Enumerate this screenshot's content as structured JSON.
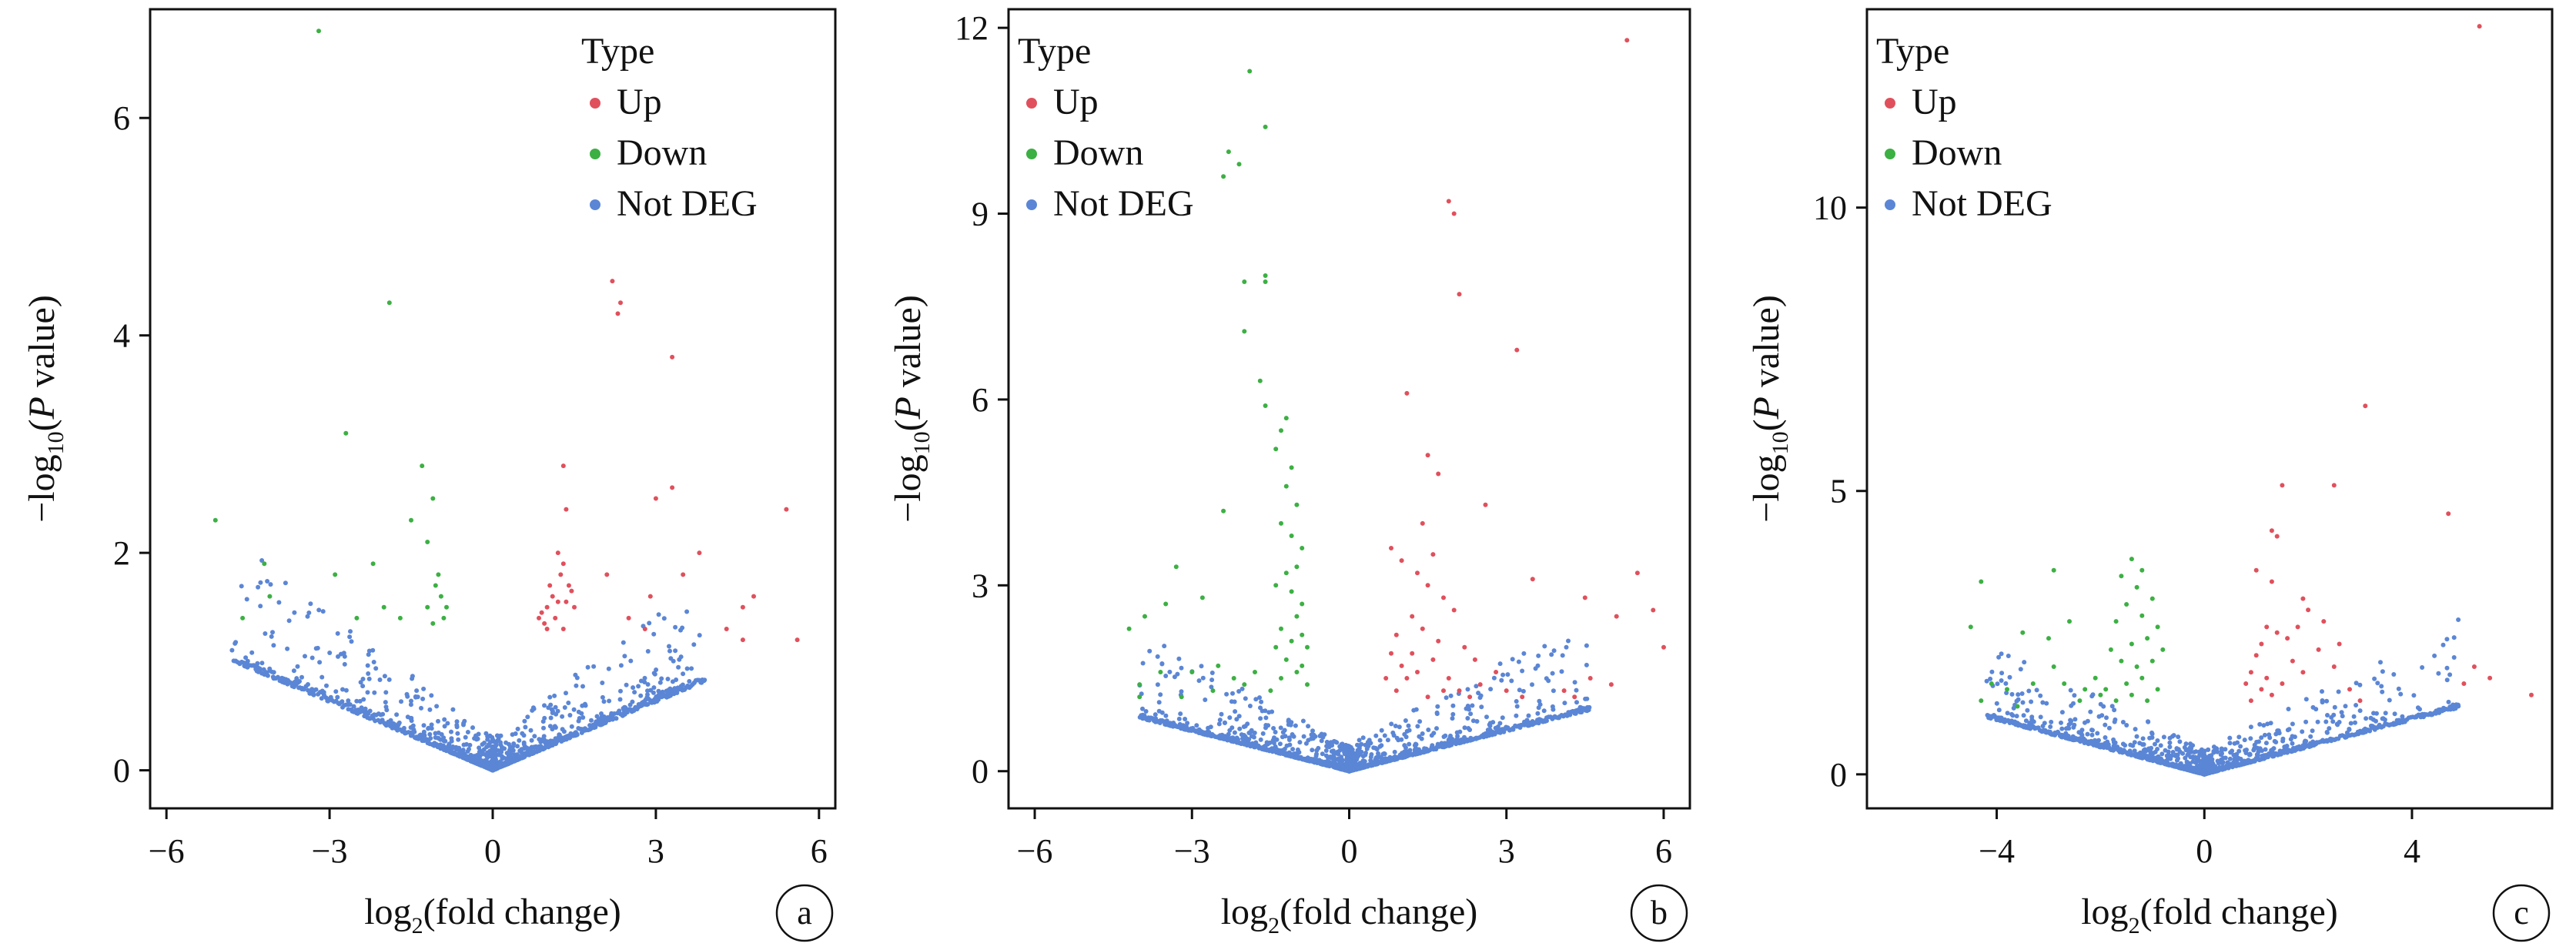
{
  "legend": {
    "title": "Type",
    "items": [
      {
        "label": "Up",
        "color": "#e0505c"
      },
      {
        "label": "Down",
        "color": "#3cb043"
      },
      {
        "label": "Not DEG",
        "color": "#5b86d6"
      }
    ]
  },
  "axis_text": {
    "x_main": "log",
    "x_sub": "2",
    "x_rest": "(fold change)",
    "y_pre": "−log",
    "y_sub": "10",
    "y_open": "(",
    "y_p": "P",
    "y_rest": " value)"
  },
  "chart_data": [
    {
      "type": "scatter",
      "panel_label": "a",
      "xlim": [
        -6.3,
        6.3
      ],
      "ylim": [
        -0.35,
        7.0
      ],
      "xticks": [
        -6,
        -3,
        0,
        3,
        6
      ],
      "yticks": [
        0,
        2,
        4,
        6
      ],
      "legend_position": "top-right",
      "up": [
        [
          2.2,
          4.5
        ],
        [
          2.3,
          4.2
        ],
        [
          2.35,
          4.3
        ],
        [
          3.3,
          3.8
        ],
        [
          5.4,
          2.4
        ],
        [
          5.6,
          1.2
        ],
        [
          4.8,
          1.6
        ],
        [
          4.6,
          1.5
        ],
        [
          3.8,
          2.0
        ],
        [
          3.0,
          2.5
        ],
        [
          3.3,
          2.6
        ],
        [
          1.3,
          2.8
        ],
        [
          1.35,
          2.4
        ],
        [
          2.1,
          1.8
        ],
        [
          3.5,
          1.8
        ],
        [
          2.9,
          1.6
        ],
        [
          4.3,
          1.3
        ],
        [
          4.6,
          1.2
        ],
        [
          1.2,
          2.0
        ],
        [
          1.3,
          1.9
        ],
        [
          1.25,
          1.8
        ],
        [
          1.4,
          1.7
        ],
        [
          1.1,
          1.6
        ],
        [
          1.0,
          1.5
        ],
        [
          0.9,
          1.45
        ],
        [
          1.15,
          1.4
        ],
        [
          0.95,
          1.35
        ],
        [
          1.35,
          1.55
        ],
        [
          1.45,
          1.65
        ],
        [
          1.05,
          1.7
        ],
        [
          1.5,
          1.5
        ],
        [
          1.2,
          1.55
        ],
        [
          0.85,
          1.4
        ],
        [
          1.3,
          1.3
        ],
        [
          1.0,
          1.3
        ],
        [
          2.5,
          1.4
        ],
        [
          2.8,
          1.3
        ]
      ],
      "down": [
        [
          -3.2,
          6.8
        ],
        [
          -1.9,
          4.3
        ],
        [
          -2.7,
          3.1
        ],
        [
          -1.3,
          2.8
        ],
        [
          -5.1,
          2.3
        ],
        [
          -4.2,
          1.9
        ],
        [
          -1.5,
          2.3
        ],
        [
          -2.2,
          1.9
        ],
        [
          -1.1,
          2.5
        ],
        [
          -1.2,
          2.1
        ],
        [
          -2.5,
          1.4
        ],
        [
          -2.9,
          1.8
        ],
        [
          -4.6,
          1.4
        ],
        [
          -4.1,
          1.6
        ],
        [
          -1.7,
          1.4
        ],
        [
          -2.0,
          1.5
        ],
        [
          -1.0,
          1.8
        ],
        [
          -1.05,
          1.7
        ],
        [
          -0.95,
          1.6
        ],
        [
          -1.2,
          1.5
        ],
        [
          -0.9,
          1.4
        ],
        [
          -1.1,
          1.35
        ],
        [
          -0.85,
          1.5
        ]
      ],
      "vshape": {
        "a": 0.21,
        "p": 1.0,
        "xmin": -4.8,
        "xmax": 3.9,
        "n": 900,
        "noise": 0.5,
        "seed": 11
      }
    },
    {
      "type": "scatter",
      "panel_label": "b",
      "xlim": [
        -6.5,
        6.5
      ],
      "ylim": [
        -0.6,
        12.3
      ],
      "xticks": [
        -6,
        -3,
        0,
        3,
        6
      ],
      "yticks": [
        0,
        3,
        6,
        9,
        12
      ],
      "legend_position": "top-left",
      "up": [
        [
          5.3,
          11.8
        ],
        [
          1.9,
          9.2
        ],
        [
          2.0,
          9.0
        ],
        [
          2.1,
          7.7
        ],
        [
          3.2,
          6.8
        ],
        [
          1.1,
          6.1
        ],
        [
          1.5,
          5.1
        ],
        [
          1.7,
          4.8
        ],
        [
          2.6,
          4.3
        ],
        [
          1.4,
          4.0
        ],
        [
          1.6,
          3.5
        ],
        [
          0.8,
          3.6
        ],
        [
          1.0,
          3.4
        ],
        [
          1.3,
          3.2
        ],
        [
          1.5,
          3.0
        ],
        [
          1.8,
          2.8
        ],
        [
          2.0,
          2.6
        ],
        [
          3.5,
          3.1
        ],
        [
          4.5,
          2.8
        ],
        [
          5.5,
          3.2
        ],
        [
          5.8,
          2.6
        ],
        [
          6.0,
          2.0
        ],
        [
          5.1,
          2.5
        ],
        [
          1.2,
          2.5
        ],
        [
          0.9,
          2.2
        ],
        [
          1.4,
          2.3
        ],
        [
          1.7,
          2.1
        ],
        [
          2.2,
          2.0
        ],
        [
          2.4,
          1.8
        ],
        [
          0.8,
          1.9
        ],
        [
          1.0,
          1.7
        ],
        [
          1.1,
          1.5
        ],
        [
          1.3,
          1.6
        ],
        [
          1.6,
          1.8
        ],
        [
          1.9,
          1.5
        ],
        [
          2.1,
          1.3
        ],
        [
          2.5,
          1.4
        ],
        [
          3.0,
          1.3
        ],
        [
          3.3,
          1.2
        ],
        [
          4.1,
          1.3
        ],
        [
          4.6,
          1.5
        ],
        [
          4.3,
          1.2
        ],
        [
          5.0,
          1.4
        ],
        [
          0.7,
          1.5
        ],
        [
          1.5,
          1.2
        ],
        [
          2.8,
          1.6
        ],
        [
          1.8,
          1.3
        ],
        [
          2.3,
          1.2
        ],
        [
          0.9,
          1.3
        ],
        [
          1.2,
          1.9
        ]
      ],
      "down": [
        [
          -1.9,
          11.3
        ],
        [
          -1.6,
          10.4
        ],
        [
          -2.3,
          10.0
        ],
        [
          -2.1,
          9.8
        ],
        [
          -2.4,
          9.6
        ],
        [
          -2.0,
          7.9
        ],
        [
          -1.6,
          8.0
        ],
        [
          -1.6,
          7.9
        ],
        [
          -2.0,
          7.1
        ],
        [
          -1.7,
          6.3
        ],
        [
          -1.6,
          5.9
        ],
        [
          -1.2,
          5.7
        ],
        [
          -1.3,
          5.5
        ],
        [
          -1.4,
          5.2
        ],
        [
          -1.1,
          4.9
        ],
        [
          -1.2,
          4.6
        ],
        [
          -1.0,
          4.3
        ],
        [
          -2.4,
          4.2
        ],
        [
          -1.3,
          4.0
        ],
        [
          -1.1,
          3.8
        ],
        [
          -0.9,
          3.6
        ],
        [
          -1.0,
          3.3
        ],
        [
          -1.2,
          3.2
        ],
        [
          -1.4,
          3.0
        ],
        [
          -1.1,
          2.9
        ],
        [
          -0.9,
          2.7
        ],
        [
          -1.0,
          2.5
        ],
        [
          -1.3,
          2.3
        ],
        [
          -0.9,
          2.2
        ],
        [
          -1.1,
          2.1
        ],
        [
          -0.8,
          2.0
        ],
        [
          -1.4,
          2.0
        ],
        [
          -1.2,
          1.8
        ],
        [
          -0.9,
          1.7
        ],
        [
          -1.0,
          1.6
        ],
        [
          -1.3,
          1.5
        ],
        [
          -0.8,
          1.4
        ],
        [
          -3.3,
          3.3
        ],
        [
          -3.5,
          2.7
        ],
        [
          -2.8,
          2.8
        ],
        [
          -3.9,
          2.5
        ],
        [
          -4.2,
          2.3
        ],
        [
          -2.5,
          1.7
        ],
        [
          -3.0,
          1.6
        ],
        [
          -3.6,
          1.6
        ],
        [
          -4.0,
          1.4
        ],
        [
          -2.2,
          1.5
        ],
        [
          -1.8,
          1.6
        ],
        [
          -2.6,
          1.3
        ],
        [
          -3.2,
          1.2
        ],
        [
          -4.0,
          1.2
        ],
        [
          -2.0,
          1.4
        ],
        [
          -1.5,
          1.3
        ]
      ],
      "vshape": {
        "a": 0.215,
        "p": 1.0,
        "xmin": -4.0,
        "xmax": 4.6,
        "n": 1000,
        "noise": 0.7,
        "seed": 23
      }
    },
    {
      "type": "scatter",
      "panel_label": "c",
      "xlim": [
        -6.5,
        6.7
      ],
      "ylim": [
        -0.6,
        13.5
      ],
      "xticks": [
        -4,
        0,
        4
      ],
      "yticks": [
        0,
        5,
        10
      ],
      "legend_position": "top-left",
      "up": [
        [
          5.3,
          13.2
        ],
        [
          3.1,
          6.5
        ],
        [
          4.7,
          4.6
        ],
        [
          1.5,
          5.1
        ],
        [
          2.5,
          5.1
        ],
        [
          1.3,
          4.3
        ],
        [
          1.4,
          4.2
        ],
        [
          1.0,
          3.6
        ],
        [
          1.3,
          3.4
        ],
        [
          1.9,
          3.1
        ],
        [
          2.0,
          2.9
        ],
        [
          1.8,
          2.6
        ],
        [
          2.3,
          2.7
        ],
        [
          1.2,
          2.6
        ],
        [
          1.4,
          2.5
        ],
        [
          1.1,
          2.3
        ],
        [
          1.6,
          2.4
        ],
        [
          2.2,
          2.2
        ],
        [
          2.6,
          2.3
        ],
        [
          1.0,
          2.1
        ],
        [
          1.7,
          2.0
        ],
        [
          2.5,
          1.9
        ],
        [
          0.9,
          1.8
        ],
        [
          1.2,
          1.7
        ],
        [
          1.9,
          1.8
        ],
        [
          1.1,
          1.5
        ],
        [
          0.8,
          1.6
        ],
        [
          5.2,
          1.9
        ],
        [
          5.0,
          1.6
        ],
        [
          5.5,
          1.7
        ],
        [
          6.3,
          1.4
        ],
        [
          1.5,
          1.6
        ],
        [
          2.8,
          1.5
        ],
        [
          3.0,
          1.3
        ],
        [
          0.9,
          1.3
        ],
        [
          1.3,
          1.4
        ]
      ],
      "down": [
        [
          -4.3,
          3.4
        ],
        [
          -2.9,
          3.6
        ],
        [
          -1.4,
          3.8
        ],
        [
          -1.2,
          3.6
        ],
        [
          -1.6,
          3.5
        ],
        [
          -1.3,
          3.3
        ],
        [
          -1.0,
          3.1
        ],
        [
          -1.5,
          3.0
        ],
        [
          -1.2,
          2.8
        ],
        [
          -0.9,
          2.6
        ],
        [
          -1.7,
          2.7
        ],
        [
          -1.1,
          2.4
        ],
        [
          -1.4,
          2.3
        ],
        [
          -1.8,
          2.2
        ],
        [
          -0.8,
          2.2
        ],
        [
          -1.0,
          2.0
        ],
        [
          -1.6,
          2.0
        ],
        [
          -1.3,
          1.9
        ],
        [
          -1.2,
          1.7
        ],
        [
          -1.5,
          1.6
        ],
        [
          -0.9,
          1.5
        ],
        [
          -1.9,
          1.5
        ],
        [
          -2.3,
          1.5
        ],
        [
          -2.1,
          1.7
        ],
        [
          -3.0,
          2.4
        ],
        [
          -2.6,
          2.7
        ],
        [
          -3.5,
          2.5
        ],
        [
          -4.5,
          2.6
        ],
        [
          -2.9,
          1.9
        ],
        [
          -3.3,
          1.6
        ],
        [
          -3.8,
          1.5
        ],
        [
          -4.1,
          1.6
        ],
        [
          -4.3,
          1.3
        ],
        [
          -3.6,
          1.2
        ],
        [
          -2.7,
          1.6
        ],
        [
          -2.4,
          1.3
        ],
        [
          -2.0,
          1.4
        ],
        [
          -1.7,
          1.3
        ],
        [
          -1.4,
          1.4
        ],
        [
          -1.1,
          1.3
        ]
      ],
      "vshape": {
        "a": 0.24,
        "p": 1.0,
        "xmin": -4.2,
        "xmax": 4.9,
        "n": 900,
        "noise": 0.7,
        "seed": 37
      }
    }
  ]
}
